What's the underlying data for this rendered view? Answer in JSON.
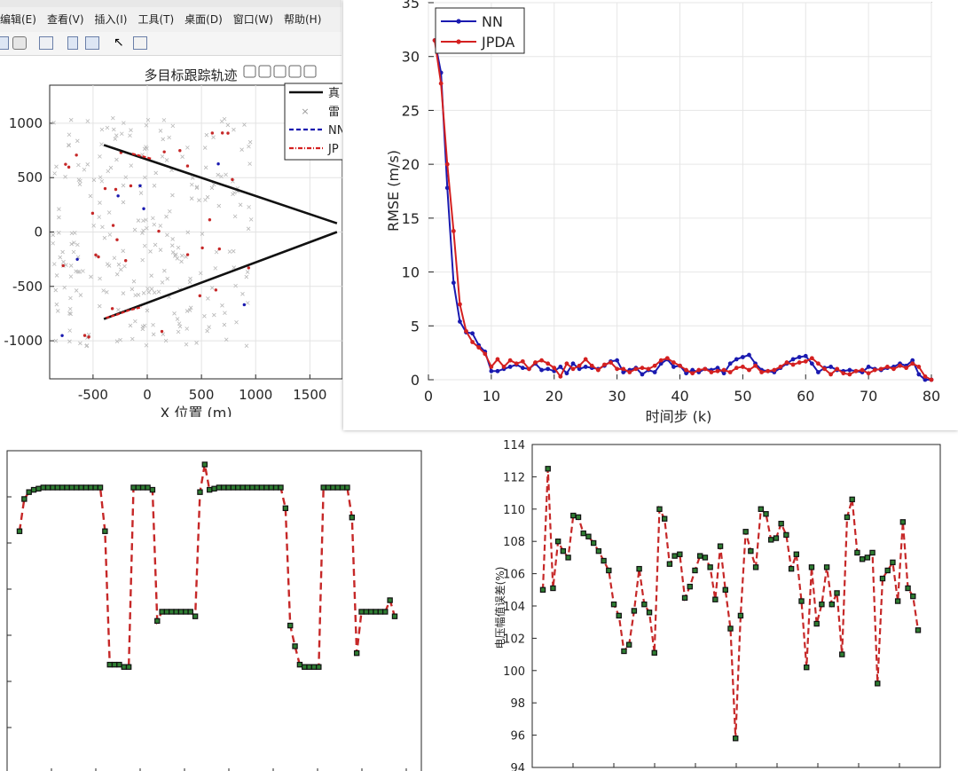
{
  "window": {
    "menus": [
      "编辑(E)",
      "查看(V)",
      "插入(I)",
      "工具(T)",
      "桌面(D)",
      "窗口(W)",
      "帮助(H)"
    ]
  },
  "chart_data": [
    {
      "type": "line",
      "title": "多目标跟踪轨迹",
      "xlabel": "X 位置 (m)",
      "ylabel": "",
      "xlim": [
        -900,
        1800
      ],
      "ylim": [
        -1350,
        1350
      ],
      "xticks": [
        -500,
        0,
        500,
        1000,
        1500
      ],
      "yticks": [
        -1000,
        -500,
        0,
        500,
        1000
      ],
      "grid": true,
      "legend_position": "top-right",
      "legend": [
        "真",
        "雷",
        "NN",
        "JP"
      ],
      "series": [
        {
          "name": "真",
          "color": "#111111",
          "x": [
            -400,
            1750
          ],
          "y": [
            800,
            80
          ]
        },
        {
          "name": "真",
          "color": "#111111",
          "x": [
            -400,
            1750
          ],
          "y": [
            -800,
            0
          ]
        },
        {
          "name": "JP",
          "color": "#d42020",
          "x": [
            -140,
            -20,
            50
          ],
          "y": [
            720,
            690,
            670
          ]
        },
        {
          "name": "JP",
          "color": "#d42020",
          "x": [
            -380,
            -280,
            -170,
            -50
          ],
          "y": [
            -790,
            -760,
            -720,
            -690
          ]
        }
      ]
    },
    {
      "type": "line",
      "title": "",
      "xlabel": "时间步 (k)",
      "ylabel": "RMSE (m/s)",
      "xlim": [
        0,
        80
      ],
      "ylim": [
        0,
        35
      ],
      "xticks": [
        0,
        10,
        20,
        30,
        40,
        50,
        60,
        70,
        80
      ],
      "yticks": [
        0,
        5,
        10,
        15,
        20,
        25,
        30,
        35
      ],
      "grid": true,
      "legend_position": "top-left",
      "series": [
        {
          "name": "NN",
          "color": "#1a1ab0",
          "x": [
            1,
            2,
            3,
            4,
            5,
            6,
            7,
            8,
            9,
            10,
            11,
            12,
            13,
            14,
            15,
            16,
            17,
            18,
            19,
            20,
            21,
            22,
            23,
            24,
            25,
            26,
            27,
            28,
            29,
            30,
            31,
            32,
            33,
            34,
            35,
            36,
            37,
            38,
            39,
            40,
            41,
            42,
            43,
            44,
            45,
            46,
            47,
            48,
            49,
            50,
            51,
            52,
            53,
            54,
            55,
            56,
            57,
            58,
            59,
            60,
            61,
            62,
            63,
            64,
            65,
            66,
            67,
            68,
            69,
            70,
            71,
            72,
            73,
            74,
            75,
            76,
            77,
            78,
            79,
            80
          ],
          "y": [
            31.5,
            28.5,
            17.8,
            9.0,
            5.4,
            4.4,
            4.3,
            3.2,
            2.6,
            0.8,
            0.8,
            1.0,
            1.2,
            1.4,
            1.1,
            1.0,
            1.5,
            0.9,
            1.0,
            0.8,
            1.2,
            0.6,
            1.5,
            1.0,
            1.2,
            1.1,
            1.0,
            1.3,
            1.7,
            1.8,
            0.7,
            0.9,
            1.1,
            0.5,
            0.9,
            0.7,
            1.5,
            1.9,
            1.2,
            1.3,
            0.6,
            0.9,
            0.7,
            1.0,
            0.9,
            1.1,
            0.6,
            1.5,
            1.9,
            2.1,
            2.3,
            1.5,
            0.9,
            0.8,
            0.7,
            1.1,
            1.5,
            1.9,
            2.1,
            2.2,
            1.5,
            0.7,
            1.1,
            1.2,
            0.9,
            0.8,
            0.9,
            0.8,
            0.7,
            1.2,
            1.0,
            0.9,
            1.1,
            1.2,
            1.5,
            1.3,
            1.8,
            0.5,
            0.0,
            0.0
          ]
        },
        {
          "name": "JPDA",
          "color": "#d42020",
          "x": [
            1,
            2,
            3,
            4,
            5,
            6,
            7,
            8,
            9,
            10,
            11,
            12,
            13,
            14,
            15,
            16,
            17,
            18,
            19,
            20,
            21,
            22,
            23,
            24,
            25,
            26,
            27,
            28,
            29,
            30,
            31,
            32,
            33,
            34,
            35,
            36,
            37,
            38,
            39,
            40,
            41,
            42,
            43,
            44,
            45,
            46,
            47,
            48,
            49,
            50,
            51,
            52,
            53,
            54,
            55,
            56,
            57,
            58,
            59,
            60,
            61,
            62,
            63,
            64,
            65,
            66,
            67,
            68,
            69,
            70,
            71,
            72,
            73,
            74,
            75,
            76,
            77,
            78,
            79,
            80
          ],
          "y": [
            31.5,
            27.5,
            20.0,
            13.8,
            7.0,
            4.5,
            3.5,
            3.0,
            2.4,
            1.2,
            1.9,
            1.2,
            1.8,
            1.5,
            1.7,
            1.0,
            1.6,
            1.8,
            1.5,
            1.1,
            0.3,
            1.5,
            1.0,
            1.3,
            1.9,
            1.3,
            0.9,
            1.4,
            1.6,
            1.0,
            1.0,
            0.7,
            1.0,
            1.1,
            1.0,
            1.3,
            1.8,
            2.0,
            1.6,
            1.3,
            0.9,
            0.6,
            0.9,
            1.0,
            0.7,
            0.8,
            0.9,
            0.7,
            1.1,
            1.2,
            0.9,
            1.3,
            0.7,
            0.8,
            0.9,
            1.2,
            1.6,
            1.4,
            1.6,
            1.7,
            2.0,
            1.5,
            1.0,
            0.5,
            1.0,
            0.6,
            0.5,
            0.8,
            0.9,
            0.6,
            0.9,
            1.0,
            1.2,
            1.0,
            1.3,
            1.1,
            1.5,
            1.2,
            0.3,
            0.0
          ]
        }
      ]
    },
    {
      "type": "line",
      "title": "",
      "xlabel": "",
      "ylabel": "",
      "xlim": [
        0,
        86
      ],
      "ylim": [
        -105,
        35
      ],
      "grid": false,
      "series": [
        {
          "name": "",
          "color": "#c62828",
          "values": [
            0,
            14,
            17,
            18,
            18.5,
            19,
            19,
            19,
            19,
            19,
            19,
            19,
            19,
            19,
            19,
            19,
            19,
            19,
            0,
            -58,
            -58,
            -58,
            -59,
            -59,
            19,
            19,
            19,
            19,
            18,
            -39,
            -35,
            -35,
            -35,
            -35,
            -35,
            -35,
            -35,
            -37,
            17,
            29,
            18,
            18.5,
            19,
            19,
            19,
            19,
            19,
            19,
            19,
            19,
            19,
            19,
            19,
            19,
            19,
            19,
            10,
            -41,
            -50,
            -58,
            -59,
            -59,
            -59,
            -59,
            19,
            19,
            19,
            19,
            19,
            19,
            6,
            -53,
            -35,
            -35,
            -35,
            -35,
            -35,
            -35,
            -30,
            -37
          ]
        }
      ]
    },
    {
      "type": "line",
      "title": "",
      "xlabel": "",
      "ylabel": "电压幅值误差(%)",
      "xlim": [
        0,
        86
      ],
      "ylim": [
        94,
        114
      ],
      "yticks": [
        94,
        96,
        98,
        100,
        102,
        104,
        106,
        108,
        110,
        112,
        114
      ],
      "grid": false,
      "series": [
        {
          "name": "",
          "color": "#c62828",
          "values": [
            105,
            112.5,
            105.1,
            108,
            107.4,
            107,
            109.6,
            109.5,
            108.5,
            108.3,
            107.9,
            107.4,
            106.8,
            106.2,
            104.1,
            103.4,
            101.2,
            101.6,
            103.7,
            106.3,
            104.1,
            103.6,
            101.1,
            110,
            109.4,
            106.6,
            107.1,
            107.2,
            104.5,
            105.2,
            106.2,
            107.1,
            107,
            106.4,
            104.4,
            107.7,
            105,
            102.6,
            95.8,
            103.4,
            108.6,
            107.4,
            106.4,
            110,
            109.7,
            108.1,
            108.2,
            109.1,
            108.4,
            106.3,
            107.2,
            104.3,
            100.2,
            106.4,
            102.9,
            104.1,
            106.4,
            104.1,
            104.8,
            101,
            109.5,
            110.6,
            107.3,
            106.9,
            107,
            107.3,
            99.2,
            105.7,
            106.2,
            106.7,
            104.3,
            109.2,
            105.1,
            104.6,
            102.5
          ]
        }
      ]
    }
  ]
}
